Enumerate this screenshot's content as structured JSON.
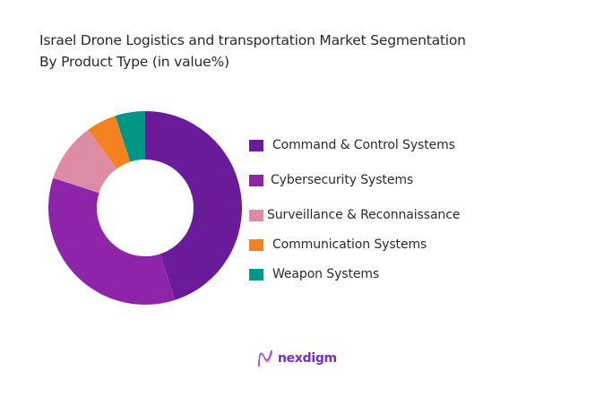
{
  "chart_data": {
    "type": "pie",
    "subtype": "donut",
    "title": "Israel Drone Logistics and transportation Market Segmentation",
    "subtitle": "By Product Type (in value%)",
    "categories": [
      "Command & Control Systems",
      "Cybersecurity Systems",
      "Surveillance & Reconnaissance",
      "Communication Systems",
      "Weapon Systems"
    ],
    "values": [
      45,
      35,
      10,
      5,
      5
    ],
    "colors": [
      "#6a1b9a",
      "#8e24aa",
      "#de8ca6",
      "#f58220",
      "#009688"
    ],
    "legend_position": "right",
    "start_angle_deg": 0,
    "direction": "clockwise"
  },
  "title": {
    "line1": "Israel Drone Logistics and transportation Market Segmentation",
    "line2": "By Product Type (in value%)"
  },
  "legend": {
    "items": [
      {
        "label": "Command & Control Systems",
        "color": "#6a1b9a"
      },
      {
        "label": "Cybersecurity Systems",
        "color": "#8e24aa"
      },
      {
        "label": "Surveillance & Reconnaissance",
        "color": "#de8ca6"
      },
      {
        "label": "Communication Systems",
        "color": "#f58220"
      },
      {
        "label": "Weapon Systems",
        "color": "#009688"
      }
    ]
  },
  "logo": {
    "text": "nexdigm",
    "icon": "nexdigm-wave-icon"
  }
}
